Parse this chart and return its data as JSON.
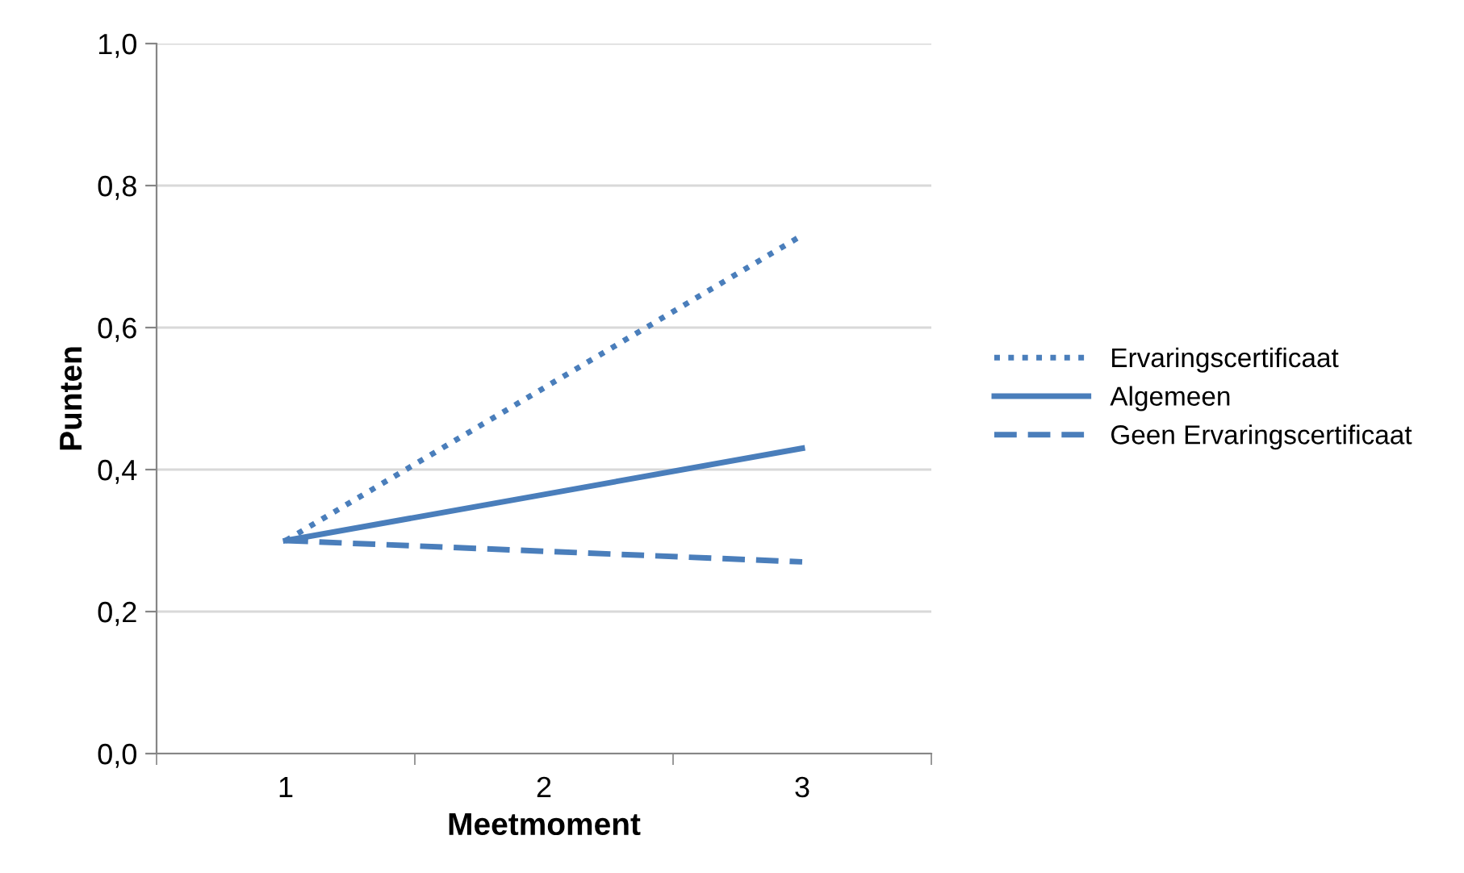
{
  "chart_data": {
    "type": "line",
    "xlabel": "Meetmoment",
    "ylabel": "Punten",
    "categories": [
      "1",
      "2",
      "3"
    ],
    "series": [
      {
        "name": "Ervaringscertificaat",
        "color": "#4a7ebb",
        "line_style": "dotted",
        "values": [
          0.3,
          0.515,
          0.73
        ]
      },
      {
        "name": "Algemeen",
        "color": "#4a7ebb",
        "line_style": "solid",
        "values": [
          0.3,
          0.365,
          0.43
        ]
      },
      {
        "name": "Geen Ervaringscertificaat",
        "color": "#4a7ebb",
        "line_style": "dashed",
        "values": [
          0.3,
          0.285,
          0.27
        ]
      }
    ],
    "ylim": [
      0,
      1
    ],
    "yticks": [
      {
        "value": 0,
        "label": "0,0"
      },
      {
        "value": 0.2,
        "label": "0,2"
      },
      {
        "value": 0.4,
        "label": "0,4"
      },
      {
        "value": 0.6,
        "label": "0,6"
      },
      {
        "value": 0.8,
        "label": "0,8"
      },
      {
        "value": 1,
        "label": "1,0"
      }
    ],
    "grid": "y",
    "legend": "right",
    "marker": "none"
  }
}
